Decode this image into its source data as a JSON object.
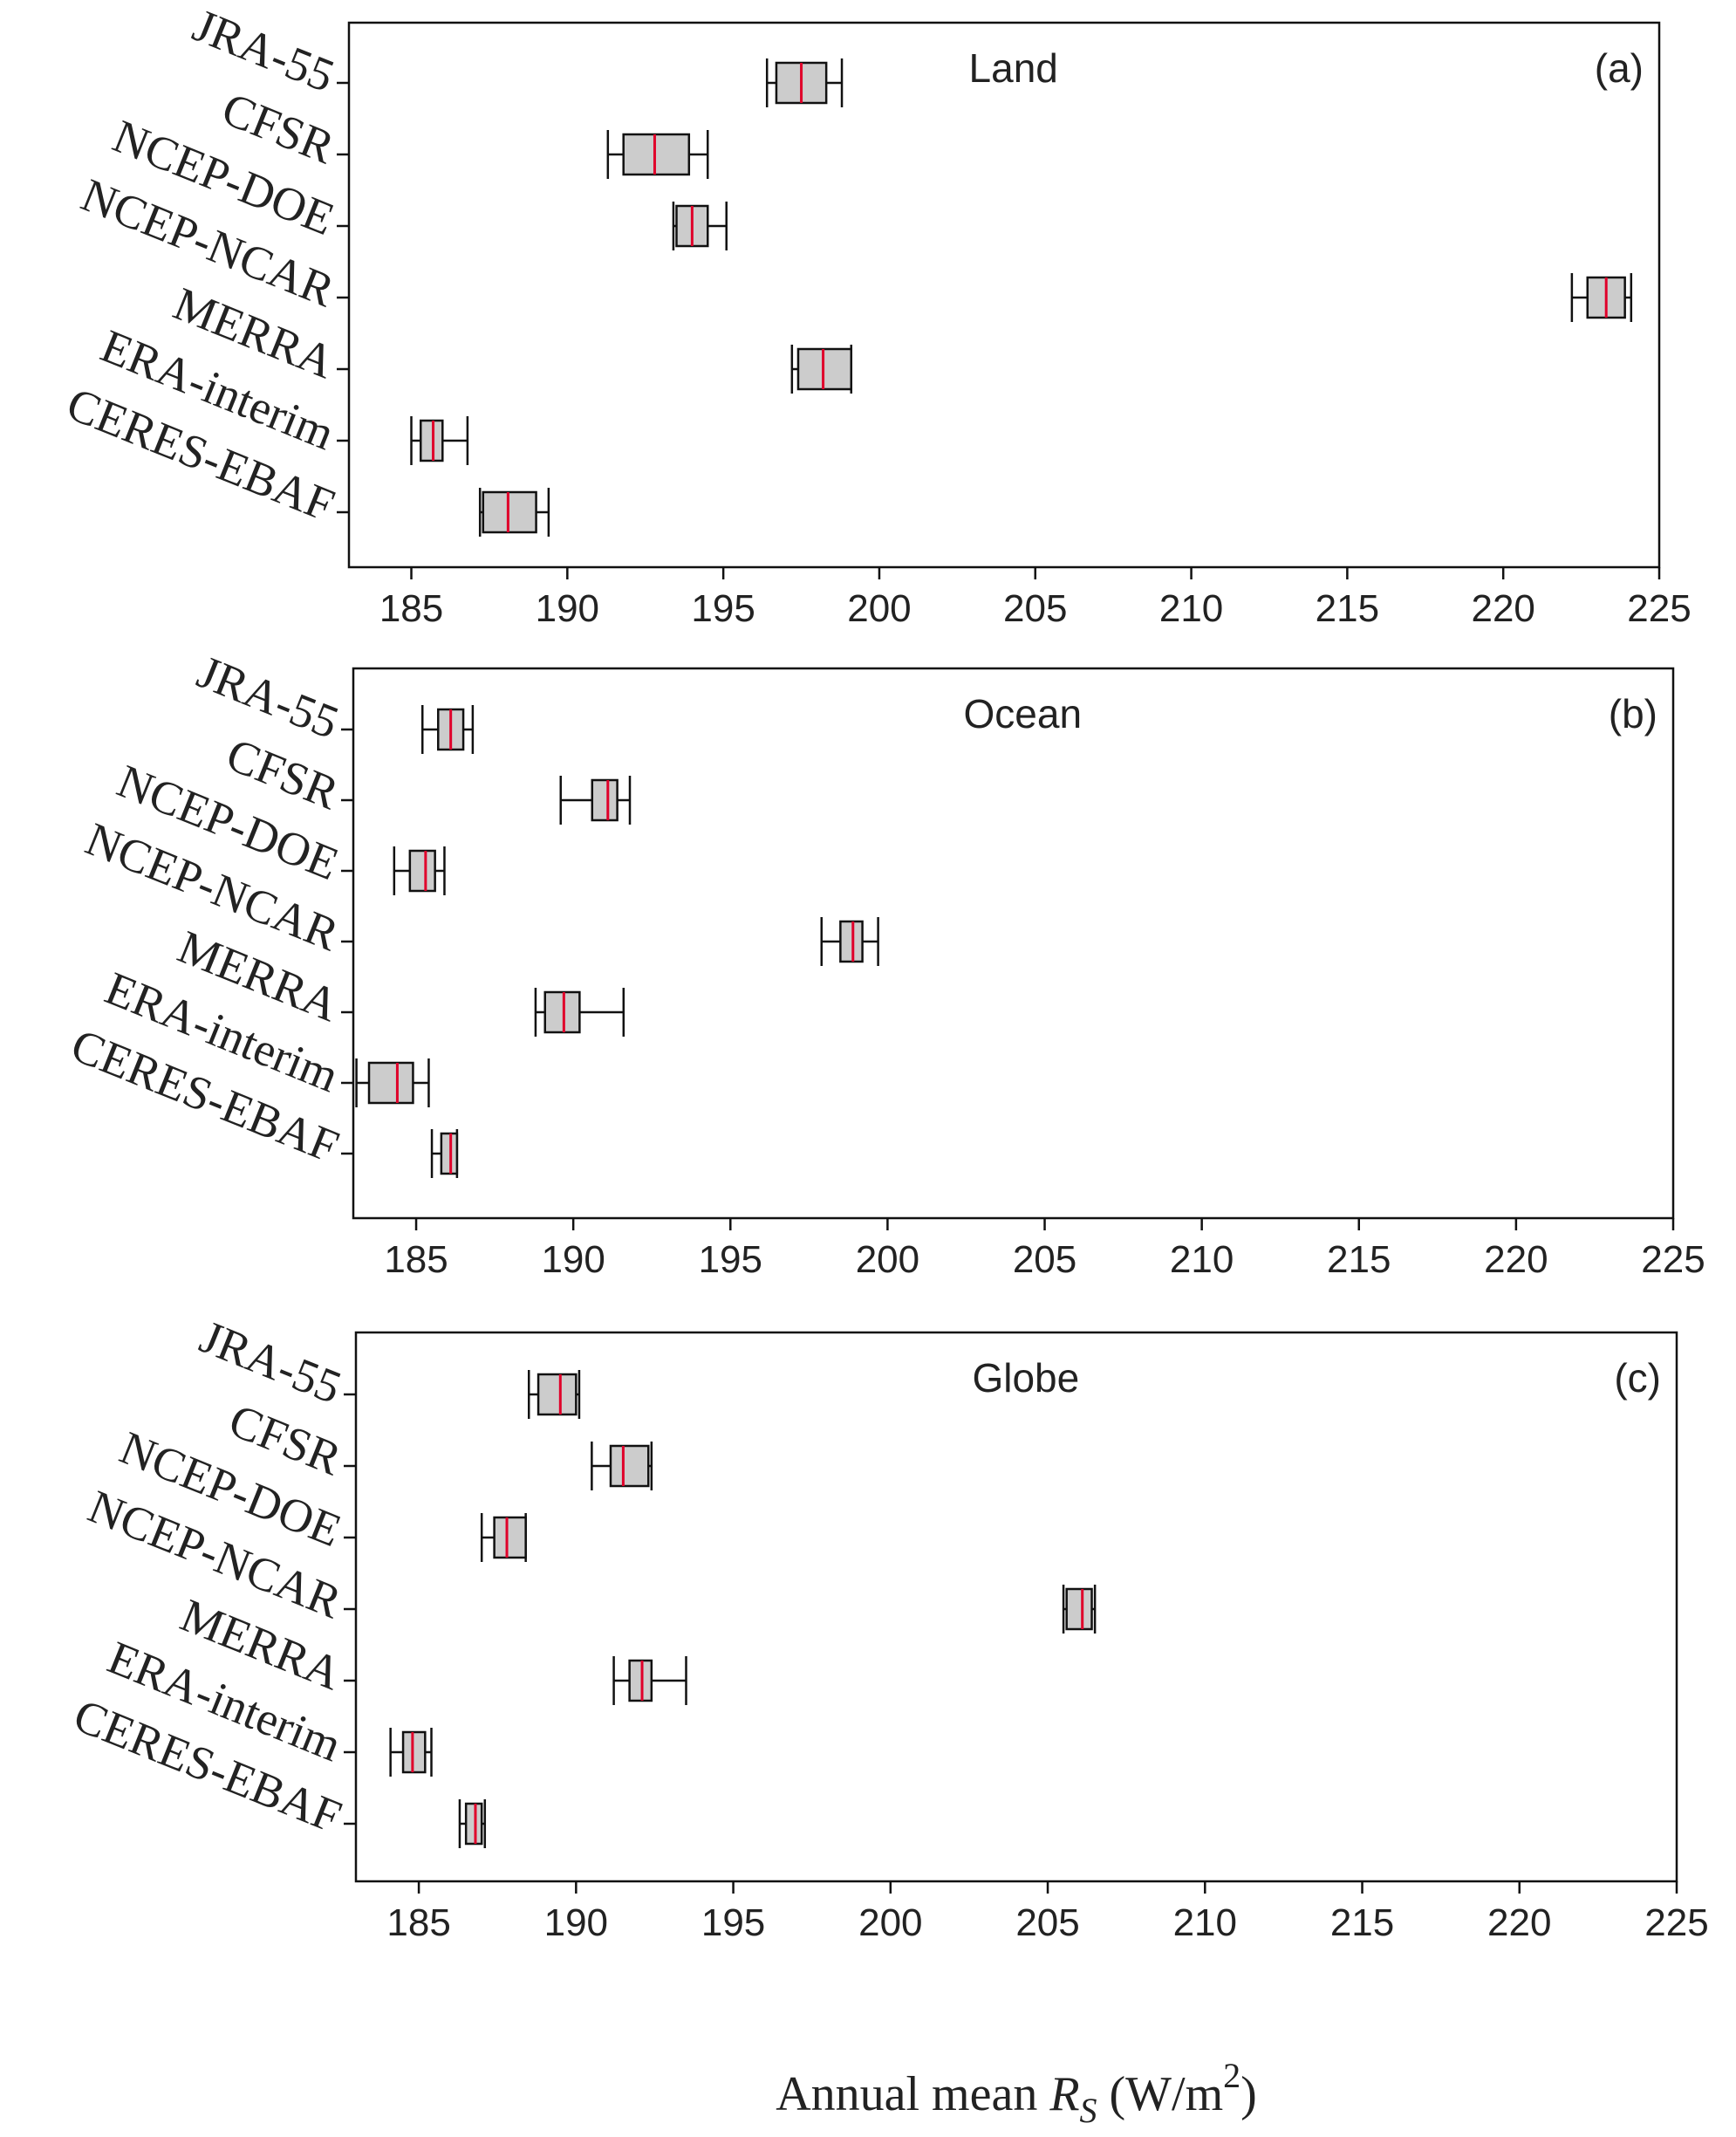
{
  "chart_data": [
    {
      "type": "box",
      "title": "Land",
      "panel": "(a)",
      "categories": [
        "JRA-55",
        "CFSR",
        "NCEP-DOE",
        "NCEP-NCAR",
        "MERRA",
        "ERA-interim",
        "CERES-EBAF"
      ],
      "boxes": [
        {
          "min": 196.4,
          "q1": 196.7,
          "median": 197.5,
          "q3": 198.3,
          "max": 198.8
        },
        {
          "min": 191.3,
          "q1": 191.8,
          "median": 192.8,
          "q3": 193.9,
          "max": 194.5
        },
        {
          "min": 193.4,
          "q1": 193.5,
          "median": 194.0,
          "q3": 194.5,
          "max": 195.1
        },
        {
          "min": 222.2,
          "q1": 222.7,
          "median": 223.3,
          "q3": 223.9,
          "max": 224.1
        },
        {
          "min": 197.2,
          "q1": 197.4,
          "median": 198.2,
          "q3": 199.1,
          "max": 199.1
        },
        {
          "min": 185.0,
          "q1": 185.3,
          "median": 185.7,
          "q3": 186.0,
          "max": 186.8
        },
        {
          "min": 187.2,
          "q1": 187.3,
          "median": 188.1,
          "q3": 189.0,
          "max": 189.4
        }
      ],
      "xlim": [
        183,
        225
      ],
      "xticks": [
        185,
        190,
        195,
        200,
        205,
        210,
        215,
        220,
        225
      ]
    },
    {
      "type": "box",
      "title": "Ocean",
      "panel": "(b)",
      "categories": [
        "JRA-55",
        "CFSR",
        "NCEP-DOE",
        "NCEP-NCAR",
        "MERRA",
        "ERA-interim",
        "CERES-EBAF"
      ],
      "boxes": [
        {
          "min": 185.2,
          "q1": 185.7,
          "median": 186.1,
          "q3": 186.5,
          "max": 186.8
        },
        {
          "min": 189.6,
          "q1": 190.6,
          "median": 191.1,
          "q3": 191.4,
          "max": 191.8
        },
        {
          "min": 184.3,
          "q1": 184.8,
          "median": 185.3,
          "q3": 185.6,
          "max": 185.9
        },
        {
          "min": 197.9,
          "q1": 198.5,
          "median": 198.9,
          "q3": 199.2,
          "max": 199.7
        },
        {
          "min": 188.8,
          "q1": 189.1,
          "median": 189.7,
          "q3": 190.2,
          "max": 191.6
        },
        {
          "min": 183.1,
          "q1": 183.5,
          "median": 184.4,
          "q3": 184.9,
          "max": 185.4
        },
        {
          "min": 185.5,
          "q1": 185.8,
          "median": 186.1,
          "q3": 186.3,
          "max": 186.3
        }
      ],
      "xlim": [
        183,
        225
      ],
      "xticks": [
        185,
        190,
        195,
        200,
        205,
        210,
        215,
        220,
        225
      ]
    },
    {
      "type": "box",
      "title": "Globe",
      "panel": "(c)",
      "categories": [
        "JRA-55",
        "CFSR",
        "NCEP-DOE",
        "NCEP-NCAR",
        "MERRA",
        "ERA-interim",
        "CERES-EBAF"
      ],
      "boxes": [
        {
          "min": 188.5,
          "q1": 188.8,
          "median": 189.5,
          "q3": 190.0,
          "max": 190.1
        },
        {
          "min": 190.5,
          "q1": 191.1,
          "median": 191.5,
          "q3": 192.3,
          "max": 192.4
        },
        {
          "min": 187.0,
          "q1": 187.4,
          "median": 187.8,
          "q3": 188.4,
          "max": 188.4
        },
        {
          "min": 205.5,
          "q1": 205.6,
          "median": 206.1,
          "q3": 206.4,
          "max": 206.5
        },
        {
          "min": 191.2,
          "q1": 191.7,
          "median": 192.1,
          "q3": 192.4,
          "max": 193.5
        },
        {
          "min": 184.1,
          "q1": 184.5,
          "median": 184.8,
          "q3": 185.2,
          "max": 185.4
        },
        {
          "min": 186.3,
          "q1": 186.5,
          "median": 186.8,
          "q3": 187.0,
          "max": 187.1
        }
      ],
      "xlim": [
        183,
        225
      ],
      "xticks": [
        185,
        190,
        195,
        200,
        205,
        210,
        215,
        220,
        225
      ]
    }
  ],
  "xlabel": {
    "prefix": "Annual mean ",
    "symbol": "R",
    "subscript": "S",
    "unit_open": " (W/m",
    "superscript": "2",
    "unit_close": ")"
  },
  "colors": {
    "box_fill": "#cccccc",
    "box_stroke": "#111111",
    "median": "#e0002a",
    "axis": "#111111"
  }
}
